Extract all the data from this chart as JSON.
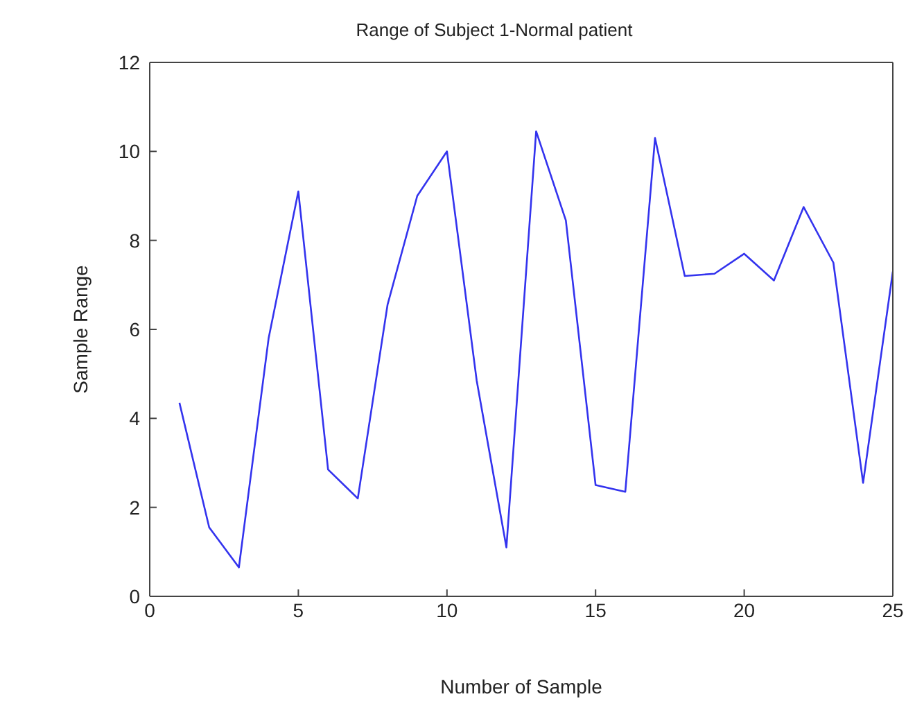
{
  "chart_data": {
    "type": "line",
    "title": "Range of Subject 1-Normal patient",
    "xlabel": "Number of Sample",
    "ylabel": "Sample Range",
    "x": [
      1,
      2,
      3,
      4,
      5,
      6,
      7,
      8,
      9,
      10,
      11,
      12,
      13,
      14,
      15,
      16,
      17,
      18,
      19,
      20,
      21,
      22,
      23,
      24,
      25
    ],
    "series": [
      {
        "color": "#3333ee",
        "values": [
          4.35,
          1.55,
          0.65,
          5.8,
          9.1,
          2.85,
          2.2,
          6.55,
          9.0,
          10.0,
          4.85,
          1.1,
          10.45,
          8.45,
          2.5,
          2.35,
          10.3,
          7.2,
          7.25,
          7.7,
          7.1,
          8.75,
          7.5,
          2.55,
          7.3
        ]
      }
    ],
    "xlim": [
      0,
      25
    ],
    "xticks": [
      0,
      5,
      10,
      15,
      20,
      25
    ],
    "ylim": [
      0,
      12
    ],
    "yticks": [
      0,
      2,
      4,
      6,
      8,
      10,
      12
    ],
    "grid": false,
    "legend": false,
    "marker": "none",
    "line_style": "solid"
  }
}
